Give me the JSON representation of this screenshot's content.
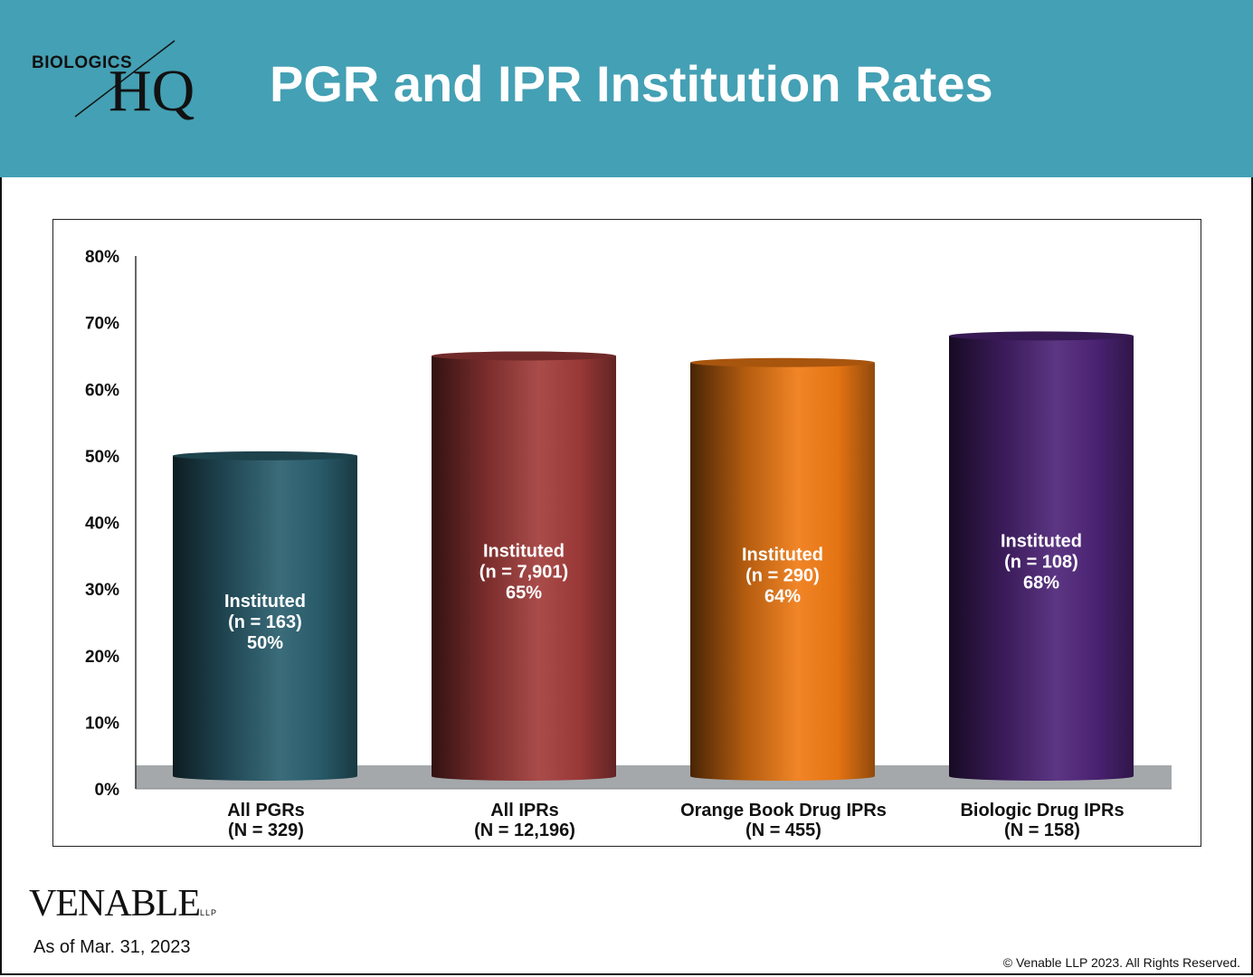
{
  "header": {
    "logo_top": "BIOLOGICS",
    "logo_bottom": "HQ",
    "title": "PGR and IPR Institution Rates",
    "background": "#44a0b4"
  },
  "chart_data": {
    "type": "bar",
    "style": "3d-cylinder",
    "title": "PGR and IPR Institution Rates",
    "categories": [
      {
        "line1": "All PGRs",
        "line2": "(N = 329)"
      },
      {
        "line1": "All IPRs",
        "line2": "(N = 12,196)"
      },
      {
        "line1": "Orange Book Drug IPRs",
        "line2": "(N = 455)"
      },
      {
        "line1": "Biologic Drug IPRs",
        "line2": "(N = 158)"
      }
    ],
    "values": [
      50,
      65,
      64,
      68
    ],
    "data_labels": [
      {
        "line1": "Instituted",
        "line2": "(n = 163)",
        "line3": "50%"
      },
      {
        "line1": "Instituted",
        "line2": "(n = 7,901)",
        "line3": "65%"
      },
      {
        "line1": "Instituted",
        "line2": "(n = 290)",
        "line3": "64%"
      },
      {
        "line1": "Instituted",
        "line2": "(n = 108)",
        "line3": "68%"
      }
    ],
    "colors": [
      "#2a5f6e",
      "#a23c3a",
      "#f07a14",
      "#4e2478"
    ],
    "ylim": [
      0,
      80
    ],
    "yticks": [
      "0%",
      "10%",
      "20%",
      "30%",
      "40%",
      "50%",
      "60%",
      "70%",
      "80%"
    ],
    "grid": false,
    "legend": "none"
  },
  "footer": {
    "brand": "VENABLE",
    "brand_suffix": "LLP",
    "as_of": "As of Mar. 31, 2023",
    "copyright": "© Venable LLP 2023. All Rights Reserved."
  }
}
